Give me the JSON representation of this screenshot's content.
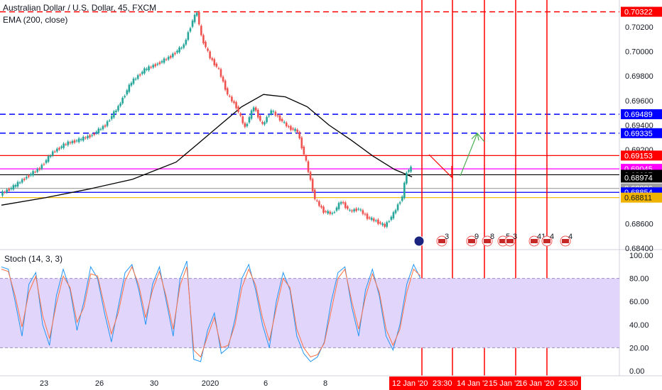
{
  "header": {
    "title": "Australian Dollar / U.S. Dollar, 45, FXCM",
    "ema_label": "EMA (200, close)",
    "stoch_label": "Stoch (14, 3, 3)"
  },
  "chart_data": [
    {
      "type": "candlestick",
      "title": "Australian Dollar / U.S. Dollar, 45, FXCM",
      "ylim": [
        0.684,
        0.7036
      ],
      "y_ticks": [
        "0.70200",
        "0.70000",
        "0.69800",
        "0.69600",
        "0.69400",
        "0.69200",
        "0.68600",
        "0.68400"
      ],
      "x_ticks": [
        "23",
        "26",
        "30",
        "2020",
        "6",
        "8"
      ],
      "series": [
        {
          "name": "EMA (200, close)",
          "color": "#000000",
          "points": [
            [
              0,
              0.6875
            ],
            [
              10,
              0.6881
            ],
            [
              20,
              0.6888
            ],
            [
              30,
              0.6896
            ],
            [
              40,
              0.691
            ],
            [
              45,
              0.6925
            ],
            [
              50,
              0.694
            ],
            [
              55,
              0.6955
            ],
            [
              60,
              0.6965
            ],
            [
              65,
              0.6963
            ],
            [
              70,
              0.6955
            ],
            [
              75,
              0.694
            ],
            [
              80,
              0.6928
            ],
            [
              85,
              0.6915
            ],
            [
              90,
              0.6904
            ],
            [
              94,
              0.6898
            ]
          ]
        },
        {
          "name": "price",
          "color": "#26a69a",
          "points": [
            [
              0,
              0.6884
            ],
            [
              3,
              0.689
            ],
            [
              6,
              0.6898
            ],
            [
              9,
              0.6905
            ],
            [
              12,
              0.6918
            ],
            [
              15,
              0.6925
            ],
            [
              18,
              0.6928
            ],
            [
              21,
              0.6932
            ],
            [
              24,
              0.694
            ],
            [
              27,
              0.6955
            ],
            [
              30,
              0.6975
            ],
            [
              33,
              0.6985
            ],
            [
              36,
              0.699
            ],
            [
              39,
              0.6996
            ],
            [
              42,
              0.7005
            ],
            [
              44,
              0.7025
            ],
            [
              45,
              0.7032
            ],
            [
              46,
              0.7012
            ],
            [
              48,
              0.6995
            ],
            [
              50,
              0.6985
            ],
            [
              52,
              0.6965
            ],
            [
              54,
              0.6955
            ],
            [
              56,
              0.6938
            ],
            [
              58,
              0.6955
            ],
            [
              60,
              0.694
            ],
            [
              62,
              0.6952
            ],
            [
              64,
              0.6945
            ],
            [
              66,
              0.6938
            ],
            [
              68,
              0.6935
            ],
            [
              70,
              0.691
            ],
            [
              72,
              0.688
            ],
            [
              74,
              0.687
            ],
            [
              76,
              0.6868
            ],
            [
              78,
              0.6878
            ],
            [
              80,
              0.687
            ],
            [
              82,
              0.6872
            ],
            [
              84,
              0.6865
            ],
            [
              86,
              0.6862
            ],
            [
              88,
              0.6858
            ],
            [
              90,
              0.6868
            ],
            [
              92,
              0.6882
            ],
            [
              93,
              0.6902
            ],
            [
              94,
              0.6905
            ]
          ]
        }
      ],
      "horizontal_levels": [
        {
          "value": 0.70322,
          "label": "0.70322",
          "color": "#ff0000",
          "style": "dashed"
        },
        {
          "value": 0.69489,
          "label": "0.69489",
          "color": "#0000ff",
          "style": "dashed"
        },
        {
          "value": 0.69335,
          "label": "0.69335",
          "color": "#0000ff",
          "style": "dashed"
        },
        {
          "value": 0.69153,
          "label": "0.69153",
          "color": "#ff0000",
          "style": "solid"
        },
        {
          "value": 0.69045,
          "label": "0.69045",
          "color": "#ff00ff",
          "style": "solid"
        },
        {
          "value": 0.68997,
          "label": "0.68997",
          "color": "#000000",
          "style": "solid"
        },
        {
          "value": 0.68974,
          "label": "0.68974",
          "color": "#000000",
          "style": "none"
        },
        {
          "value": 0.68886,
          "label": "0.68886",
          "color": "#9e9e9e",
          "style": "solid"
        },
        {
          "value": 0.68854,
          "label": "0.68854",
          "color": "#0000ff",
          "style": "solid"
        },
        {
          "value": 0.68811,
          "label": "0.68811",
          "color": "#f0b400",
          "style": "solid"
        }
      ],
      "vertical_lines_color": "#ff0000",
      "event_badges": [
        "3",
        "9",
        "8",
        "5",
        "3",
        "41",
        "4",
        "4"
      ],
      "forecast_path": {
        "down_color": "#ff0000",
        "up_color": "#4caf50"
      }
    },
    {
      "type": "line",
      "title": "Stoch (14, 3, 3)",
      "ylim": [
        0,
        100
      ],
      "y_ticks": [
        "100.00",
        "80.00",
        "60.00",
        "40.00",
        "20.00",
        "0.00"
      ],
      "band": [
        20,
        80
      ],
      "band_color": "#e1d5fb",
      "series": [
        {
          "name": "%K",
          "color": "#2196f3",
          "values": [
            90,
            88,
            60,
            30,
            75,
            85,
            40,
            22,
            65,
            88,
            70,
            35,
            60,
            90,
            80,
            50,
            25,
            55,
            85,
            92,
            70,
            40,
            75,
            90,
            60,
            30,
            80,
            95,
            10,
            8,
            35,
            50,
            15,
            20,
            45,
            80,
            92,
            70,
            40,
            20,
            60,
            85,
            70,
            30,
            15,
            8,
            12,
            25,
            60,
            85,
            90,
            55,
            30,
            70,
            88,
            65,
            30,
            18,
            40,
            75,
            92,
            80
          ]
        },
        {
          "name": "%D",
          "color": "#ff7043",
          "values": [
            88,
            86,
            65,
            38,
            68,
            82,
            48,
            28,
            58,
            82,
            72,
            42,
            55,
            84,
            82,
            56,
            32,
            50,
            78,
            90,
            74,
            46,
            70,
            86,
            64,
            36,
            74,
            90,
            18,
            12,
            30,
            46,
            20,
            22,
            40,
            72,
            88,
            74,
            46,
            26,
            54,
            80,
            72,
            36,
            20,
            12,
            14,
            24,
            52,
            80,
            88,
            60,
            36,
            64,
            84,
            68,
            36,
            22,
            36,
            68,
            88,
            82
          ]
        }
      ]
    }
  ],
  "x_axis_tags": [
    "12 Jan '20",
    "23:30",
    "14 Jan '2",
    "15 Jan '2",
    "16 Jan '20",
    "23:30"
  ]
}
